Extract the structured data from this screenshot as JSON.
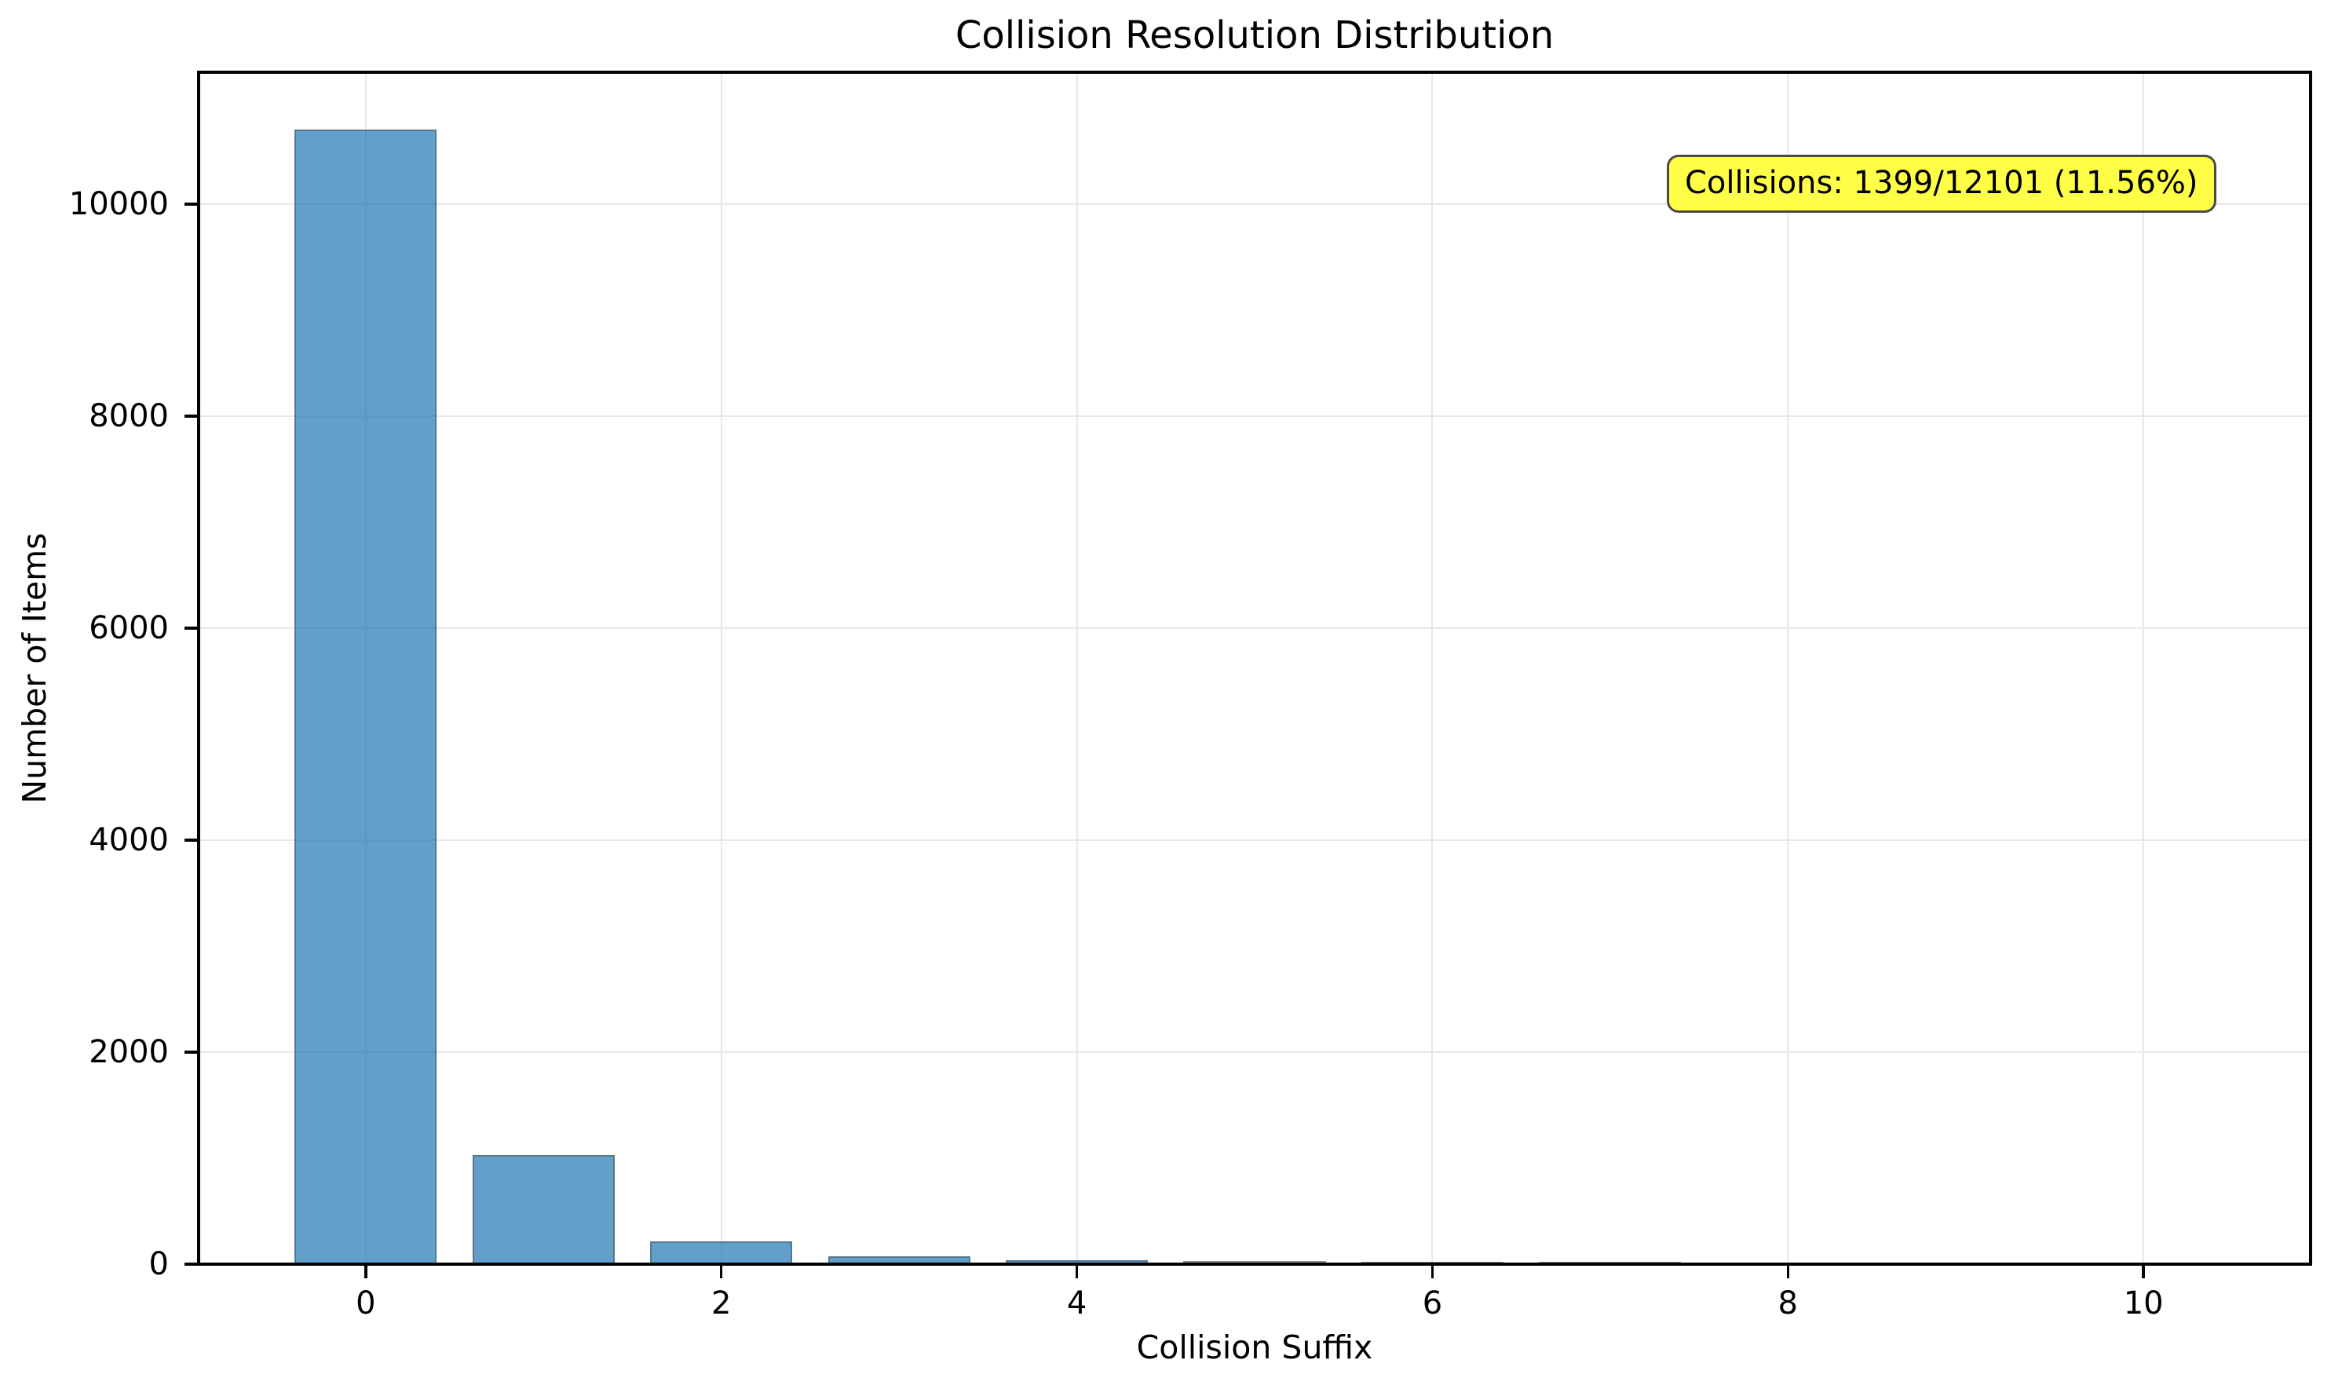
{
  "chart_data": {
    "type": "bar",
    "title": "Collision Resolution Distribution",
    "xlabel": "Collision Suffix",
    "ylabel": "Number of Items",
    "categories": [
      0,
      1,
      2,
      3,
      4,
      5,
      6,
      7,
      8,
      9,
      10
    ],
    "values": [
      10702,
      1030,
      215,
      75,
      35,
      15,
      10,
      8,
      5,
      3,
      3
    ],
    "bar_width": 0.8,
    "xlim": [
      -0.94,
      10.94
    ],
    "ylim": [
      0,
      11244
    ],
    "xticks": [
      0,
      2,
      4,
      6,
      8,
      10
    ],
    "xtick_labels": [
      "0",
      "2",
      "4",
      "6",
      "8",
      "10"
    ],
    "yticks": [
      0,
      2000,
      4000,
      6000,
      8000,
      10000
    ],
    "ytick_labels": [
      "0",
      "2000",
      "4000",
      "6000",
      "8000",
      "10000"
    ],
    "grid": true,
    "legend": "none",
    "colors": {
      "bar_fill": "#1f77b4",
      "bar_alpha": 0.7,
      "bar_edge": "rgba(70,70,70,0.45)",
      "grid": "#e7e7e7",
      "spine": "#000000",
      "text": "#000000",
      "annotation_bg": "#ffff47",
      "annotation_border": "#4a4a4a"
    },
    "annotation": {
      "text": "Collisions: 1399/12101 (11.56%)"
    }
  }
}
